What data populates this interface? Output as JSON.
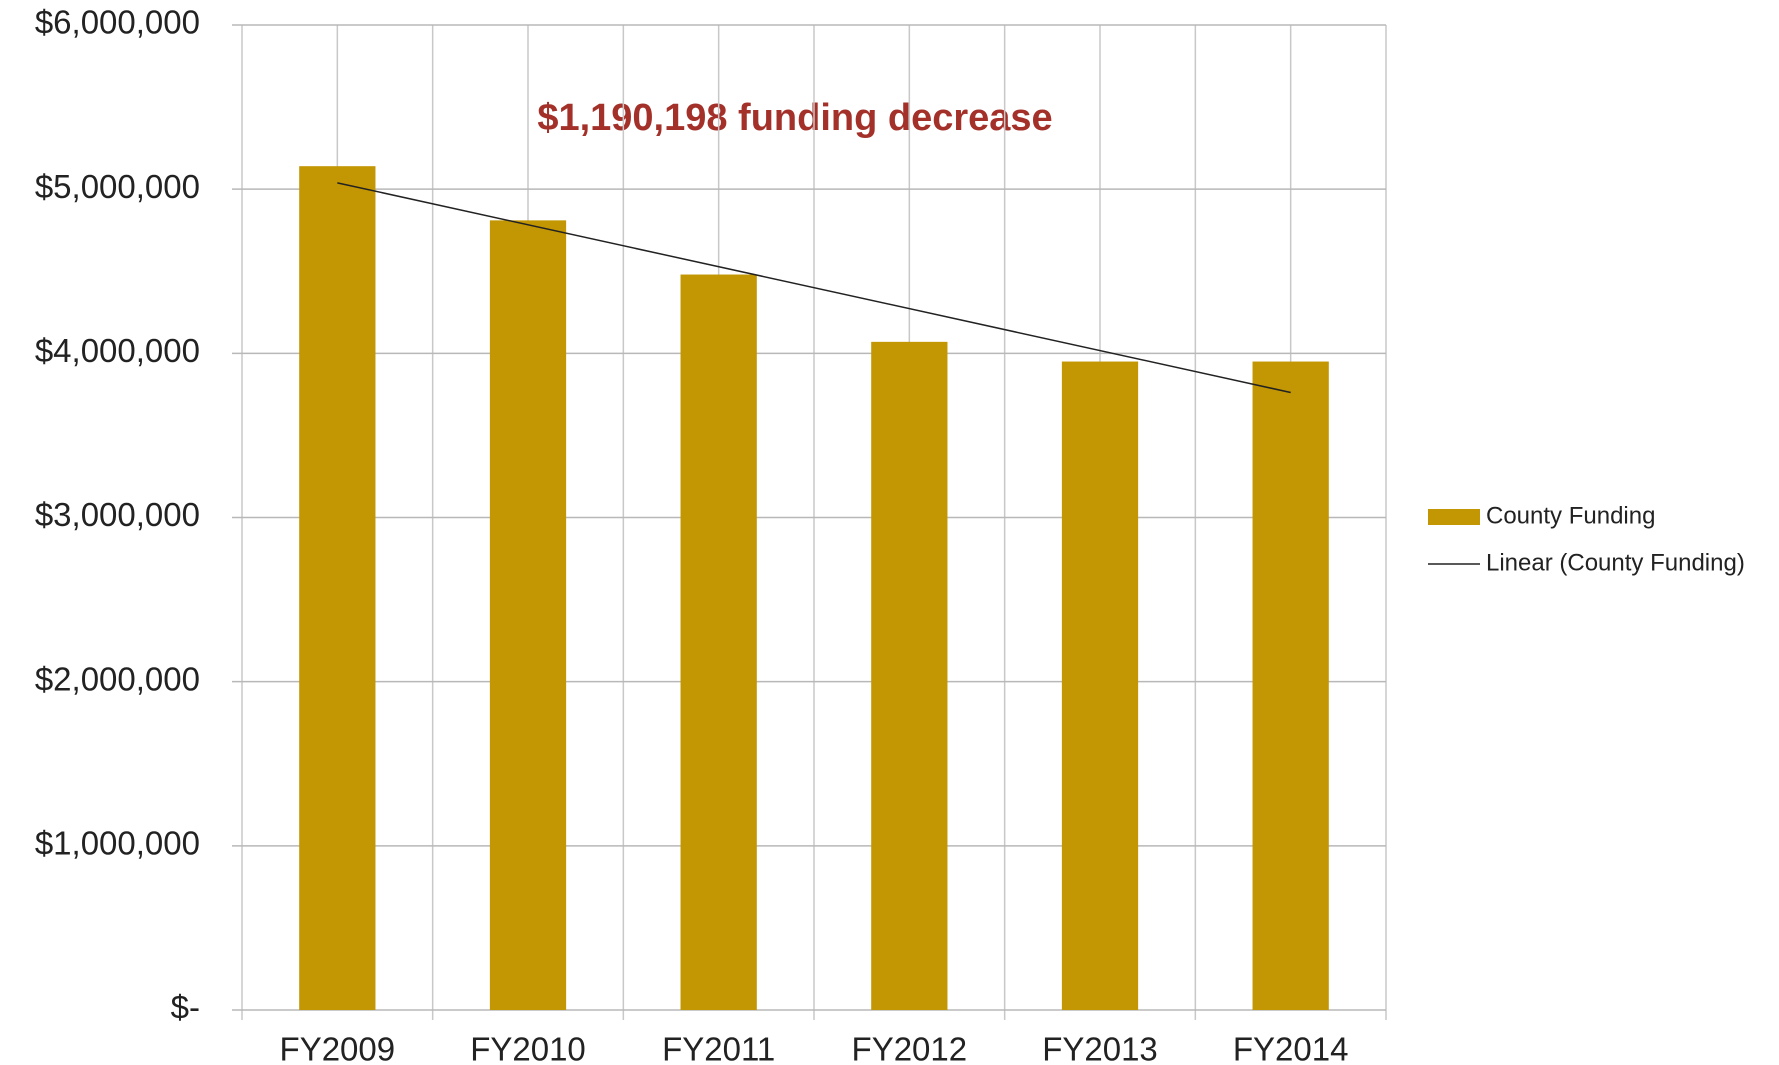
{
  "chart_data": {
    "type": "bar",
    "annotation": "$1,190,198  funding  decrease",
    "categories": [
      "FY2009",
      "FY2010",
      "FY2011",
      "FY2012",
      "FY2013",
      "FY2014"
    ],
    "series": [
      {
        "name": "County Funding",
        "color": "#c39604",
        "values": [
          5140000,
          4810000,
          4480000,
          4070000,
          3950000,
          3950000
        ]
      }
    ],
    "trendline": {
      "name": "Linear (County Funding)",
      "color": "#222222"
    },
    "ylim": [
      0,
      6000000
    ],
    "yticks": [
      {
        "value": 0,
        "label": "$-"
      },
      {
        "value": 1000000,
        "label": "$1,000,000"
      },
      {
        "value": 2000000,
        "label": "$2,000,000"
      },
      {
        "value": 3000000,
        "label": "$3,000,000"
      },
      {
        "value": 4000000,
        "label": "$4,000,000"
      },
      {
        "value": 5000000,
        "label": "$5,000,000"
      },
      {
        "value": 6000000,
        "label": "$6,000,000"
      }
    ],
    "grid": true,
    "legend": "right"
  }
}
